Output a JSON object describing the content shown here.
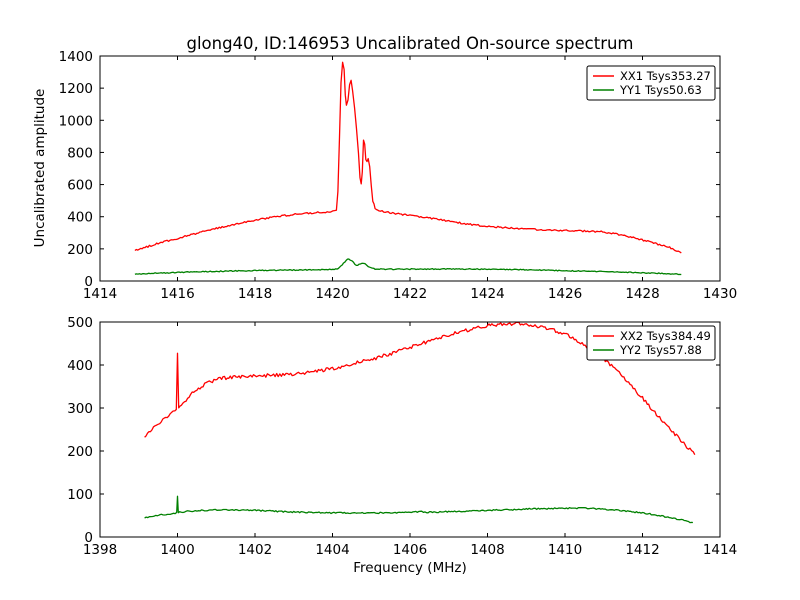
{
  "figure": {
    "title": "glong40, ID:146953 Uncalibrated On-source spectrum",
    "xlabel": "Frequency (MHz)",
    "ylabel": "Uncalibrated amplitude",
    "background_color": "#ffffff",
    "axis_color": "#000000"
  },
  "chart_data": [
    {
      "type": "line",
      "subplot": "top",
      "xlim": [
        1414,
        1430
      ],
      "ylim": [
        0,
        1400
      ],
      "xticks": [
        1414,
        1416,
        1418,
        1420,
        1422,
        1424,
        1426,
        1428,
        1430
      ],
      "yticks": [
        0,
        200,
        400,
        600,
        800,
        1000,
        1200,
        1400
      ],
      "grid": false,
      "legend_position": "upper right",
      "legend": [
        {
          "label": "XX1 Tsys353.27",
          "color": "#ff0000",
          "tsys": 353.27
        },
        {
          "label": "YY1 Tsys50.63",
          "color": "#008000",
          "tsys": 50.63
        }
      ],
      "series": [
        {
          "name": "XX1",
          "color": "#ff0000",
          "noise": 5,
          "points": [
            [
              1414.9,
              190
            ],
            [
              1415.2,
              212
            ],
            [
              1415.5,
              234
            ],
            [
              1416.0,
              265
            ],
            [
              1416.5,
              297
            ],
            [
              1417.0,
              327
            ],
            [
              1417.5,
              354
            ],
            [
              1418.0,
              378
            ],
            [
              1418.5,
              399
            ],
            [
              1419.0,
              414
            ],
            [
              1419.5,
              424
            ],
            [
              1419.9,
              429
            ],
            [
              1420.05,
              433
            ],
            [
              1420.1,
              445
            ],
            [
              1420.14,
              560
            ],
            [
              1420.18,
              900
            ],
            [
              1420.22,
              1230
            ],
            [
              1420.26,
              1365
            ],
            [
              1420.3,
              1320
            ],
            [
              1420.33,
              1160
            ],
            [
              1420.36,
              1090
            ],
            [
              1420.4,
              1130
            ],
            [
              1420.44,
              1220
            ],
            [
              1420.48,
              1245
            ],
            [
              1420.52,
              1180
            ],
            [
              1420.57,
              1080
            ],
            [
              1420.62,
              950
            ],
            [
              1420.67,
              790
            ],
            [
              1420.71,
              640
            ],
            [
              1420.74,
              600
            ],
            [
              1420.77,
              680
            ],
            [
              1420.8,
              880
            ],
            [
              1420.83,
              855
            ],
            [
              1420.86,
              760
            ],
            [
              1420.89,
              740
            ],
            [
              1420.92,
              765
            ],
            [
              1420.96,
              715
            ],
            [
              1421.0,
              590
            ],
            [
              1421.04,
              495
            ],
            [
              1421.1,
              455
            ],
            [
              1421.2,
              438
            ],
            [
              1421.4,
              428
            ],
            [
              1421.7,
              418
            ],
            [
              1422.0,
              408
            ],
            [
              1422.4,
              396
            ],
            [
              1422.8,
              380
            ],
            [
              1423.2,
              364
            ],
            [
              1423.6,
              351
            ],
            [
              1424.0,
              341
            ],
            [
              1424.5,
              331
            ],
            [
              1425.0,
              323
            ],
            [
              1425.5,
              317
            ],
            [
              1426.0,
              313
            ],
            [
              1426.5,
              311
            ],
            [
              1426.9,
              307
            ],
            [
              1427.2,
              298
            ],
            [
              1427.5,
              284
            ],
            [
              1427.8,
              267
            ],
            [
              1428.1,
              249
            ],
            [
              1428.4,
              229
            ],
            [
              1428.7,
              208
            ],
            [
              1429.0,
              178
            ]
          ]
        },
        {
          "name": "YY1",
          "color": "#008000",
          "noise": 3,
          "points": [
            [
              1414.9,
              42
            ],
            [
              1415.5,
              49
            ],
            [
              1416.0,
              54
            ],
            [
              1417.0,
              60
            ],
            [
              1418.0,
              65
            ],
            [
              1419.0,
              68
            ],
            [
              1419.8,
              70
            ],
            [
              1420.05,
              72
            ],
            [
              1420.15,
              78
            ],
            [
              1420.25,
              100
            ],
            [
              1420.35,
              128
            ],
            [
              1420.42,
              138
            ],
            [
              1420.5,
              126
            ],
            [
              1420.58,
              104
            ],
            [
              1420.65,
              96
            ],
            [
              1420.72,
              108
            ],
            [
              1420.8,
              112
            ],
            [
              1420.88,
              100
            ],
            [
              1420.96,
              84
            ],
            [
              1421.1,
              76
            ],
            [
              1421.4,
              73
            ],
            [
              1422.0,
              74
            ],
            [
              1423.0,
              75
            ],
            [
              1424.0,
              74
            ],
            [
              1425.0,
              70
            ],
            [
              1426.0,
              64
            ],
            [
              1427.0,
              58
            ],
            [
              1428.0,
              51
            ],
            [
              1428.5,
              47
            ],
            [
              1429.0,
              41
            ]
          ]
        }
      ]
    },
    {
      "type": "line",
      "subplot": "bottom",
      "xlim": [
        1398,
        1414
      ],
      "ylim": [
        0,
        500
      ],
      "xticks": [
        1398,
        1400,
        1402,
        1404,
        1406,
        1408,
        1410,
        1412,
        1414
      ],
      "yticks": [
        0,
        100,
        200,
        300,
        400,
        500
      ],
      "grid": false,
      "legend_position": "upper right",
      "legend": [
        {
          "label": "XX2 Tsys384.49",
          "color": "#ff0000",
          "tsys": 384.49
        },
        {
          "label": "YY2 Tsys57.88",
          "color": "#008000",
          "tsys": 57.88
        }
      ],
      "series": [
        {
          "name": "XX2",
          "color": "#ff0000",
          "noise": 4,
          "points": [
            [
              1399.15,
              232
            ],
            [
              1399.3,
              246
            ],
            [
              1399.5,
              263
            ],
            [
              1399.7,
              278
            ],
            [
              1399.85,
              288
            ],
            [
              1399.97,
              295
            ],
            [
              1400.0,
              428
            ],
            [
              1400.03,
              298
            ],
            [
              1400.1,
              306
            ],
            [
              1400.3,
              328
            ],
            [
              1400.5,
              343
            ],
            [
              1400.7,
              355
            ],
            [
              1400.9,
              363
            ],
            [
              1401.1,
              368
            ],
            [
              1401.4,
              372
            ],
            [
              1401.7,
              374
            ],
            [
              1402.0,
              375
            ],
            [
              1402.4,
              376
            ],
            [
              1402.8,
              378
            ],
            [
              1403.2,
              381
            ],
            [
              1403.6,
              386
            ],
            [
              1404.0,
              392
            ],
            [
              1404.4,
              400
            ],
            [
              1404.8,
              409
            ],
            [
              1405.2,
              418
            ],
            [
              1405.6,
              429
            ],
            [
              1406.0,
              441
            ],
            [
              1406.4,
              453
            ],
            [
              1406.8,
              464
            ],
            [
              1407.2,
              475
            ],
            [
              1407.6,
              484
            ],
            [
              1408.0,
              491
            ],
            [
              1408.3,
              494
            ],
            [
              1408.7,
              496
            ],
            [
              1409.0,
              494
            ],
            [
              1409.3,
              490
            ],
            [
              1409.6,
              484
            ],
            [
              1410.0,
              472
            ],
            [
              1410.4,
              453
            ],
            [
              1410.8,
              429
            ],
            [
              1411.2,
              399
            ],
            [
              1411.6,
              363
            ],
            [
              1412.0,
              323
            ],
            [
              1412.4,
              281
            ],
            [
              1412.8,
              242
            ],
            [
              1413.1,
              214
            ],
            [
              1413.35,
              194
            ]
          ]
        },
        {
          "name": "YY2",
          "color": "#008000",
          "noise": 1.5,
          "points": [
            [
              1399.15,
              44
            ],
            [
              1399.4,
              49
            ],
            [
              1399.7,
              53
            ],
            [
              1399.9,
              55
            ],
            [
              1399.98,
              56
            ],
            [
              1400.0,
              95
            ],
            [
              1400.02,
              57
            ],
            [
              1400.3,
              60
            ],
            [
              1400.7,
              62
            ],
            [
              1401.1,
              63
            ],
            [
              1401.5,
              63
            ],
            [
              1402.0,
              62
            ],
            [
              1402.5,
              60
            ],
            [
              1403.0,
              58
            ],
            [
              1403.5,
              57
            ],
            [
              1404.0,
              56
            ],
            [
              1404.5,
              56
            ],
            [
              1405.0,
              56
            ],
            [
              1405.5,
              56
            ],
            [
              1406.0,
              57
            ],
            [
              1406.3,
              60
            ],
            [
              1406.35,
              57
            ],
            [
              1407.0,
              59
            ],
            [
              1407.5,
              60
            ],
            [
              1408.0,
              62
            ],
            [
              1408.5,
              63
            ],
            [
              1409.0,
              65
            ],
            [
              1409.5,
              66
            ],
            [
              1410.0,
              67
            ],
            [
              1410.5,
              67
            ],
            [
              1411.0,
              65
            ],
            [
              1411.5,
              61
            ],
            [
              1412.0,
              56
            ],
            [
              1412.5,
              49
            ],
            [
              1413.0,
              40
            ],
            [
              1413.3,
              33
            ]
          ]
        }
      ]
    }
  ]
}
